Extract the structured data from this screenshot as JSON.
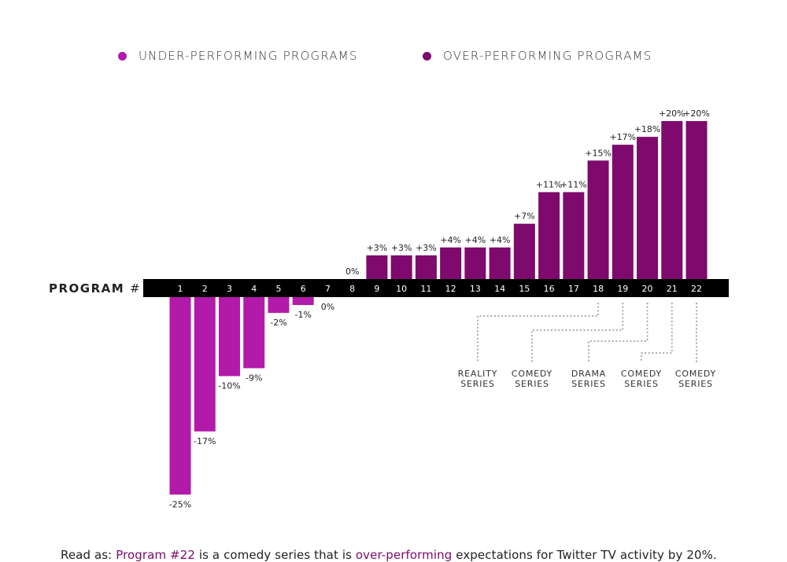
{
  "legend": {
    "items": [
      {
        "label": "UNDER-PERFORMING PROGRAMS",
        "color": "#b21aaa"
      },
      {
        "label": "OVER-PERFORMING PROGRAMS",
        "color": "#7d0a6c"
      }
    ]
  },
  "axis": {
    "title": "PROGRAM",
    "title_suffix": "#"
  },
  "footer": {
    "prefix": "Read as: ",
    "link1": "Program #22",
    "middle": " is a comedy series that is ",
    "link2": "over-performing",
    "suffix": " expectations for Twitter TV activity by 20%."
  },
  "chart_data": {
    "type": "bar",
    "title": "",
    "xlabel": "PROGRAM #",
    "ylabel": "",
    "categories": [
      "1",
      "2",
      "3",
      "4",
      "5",
      "6",
      "7",
      "8",
      "9",
      "10",
      "11",
      "12",
      "13",
      "14",
      "15",
      "16",
      "17",
      "18",
      "19",
      "20",
      "21",
      "22"
    ],
    "values": [
      -25,
      -17,
      -10,
      -9,
      -2,
      -1,
      0,
      0,
      3,
      3,
      3,
      4,
      4,
      4,
      7,
      11,
      11,
      15,
      17,
      18,
      20,
      20
    ],
    "labels": [
      "-25%",
      "-17%",
      "-10%",
      "-9%",
      "-2%",
      "-1%",
      "0%",
      "0%",
      "+3%",
      "+3%",
      "+3%",
      "+4%",
      "+4%",
      "+4%",
      "+7%",
      "+11%",
      "+11%",
      "+15%",
      "+17%",
      "+18%",
      "+20%",
      "+20%"
    ],
    "colors": {
      "negative": "#b21aaa",
      "positive": "#7d0a6c",
      "axis_band": "#000000",
      "axis_text": "#ffffff",
      "leader": "#aaaaaa"
    },
    "ylim": [
      -25,
      20
    ],
    "grid": false,
    "legend_position": "top-center",
    "annotations": [
      {
        "programs": [
          "18"
        ],
        "text_line1": "REALITY",
        "text_line2": "SERIES"
      },
      {
        "programs": [
          "19"
        ],
        "text_line1": "COMEDY",
        "text_line2": "SERIES"
      },
      {
        "programs": [
          "20"
        ],
        "text_line1": "DRAMA",
        "text_line2": "SERIES"
      },
      {
        "programs": [
          "21"
        ],
        "text_line1": "COMEDY",
        "text_line2": "SERIES"
      },
      {
        "programs": [
          "22"
        ],
        "text_line1": "COMEDY",
        "text_line2": "SERIES"
      }
    ]
  }
}
